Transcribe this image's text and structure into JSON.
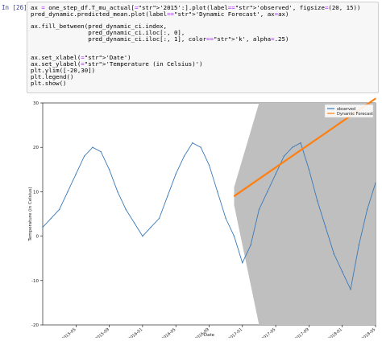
{
  "cell": {
    "prompt": "In [26]:",
    "code_lines": [
      "ax = one_step_df.T_mu_actual['2015':].plot(label='observed', figsize=(20, 15))",
      "pred_dynamic.predicted_mean.plot(label='Dynamic Forecast', ax=ax)",
      "",
      "ax.fill_between(pred_dynamic_ci.index,",
      "                pred_dynamic_ci.iloc[:, 0],",
      "                pred_dynamic_ci.iloc[:, 1], color='k', alpha=.25)",
      "",
      "",
      "ax.set_xlabel('Date')",
      "ax.set_ylabel('Temperature (in Celsius)')",
      "plt.ylim([-20,30])",
      "plt.legend()",
      "plt.show()"
    ]
  },
  "chart_data": {
    "type": "line",
    "xlabel": "Date",
    "ylabel": "Temperature (in Celsius)",
    "ylim": [
      -20,
      30
    ],
    "yticks": [
      -20,
      -10,
      0,
      10,
      20,
      30
    ],
    "x_range": [
      "2015-01",
      "2018-05"
    ],
    "x_ticks": [
      "2015-05",
      "2015-09",
      "2016-01",
      "2016-05",
      "2016-09",
      "2017-01",
      "2017-05",
      "2017-09",
      "2018-01",
      "2018-05"
    ],
    "legend_position": "top-right",
    "colors": {
      "observed": "#3a7ab8",
      "forecast": "#ff7f0e",
      "ci_band": "#bfbfbf"
    },
    "series": [
      {
        "name": "observed",
        "x": [
          "2015-01",
          "2015-02",
          "2015-03",
          "2015-04",
          "2015-05",
          "2015-06",
          "2015-07",
          "2015-08",
          "2015-09",
          "2015-10",
          "2015-11",
          "2015-12",
          "2016-01",
          "2016-02",
          "2016-03",
          "2016-04",
          "2016-05",
          "2016-06",
          "2016-07",
          "2016-08",
          "2016-09",
          "2016-10",
          "2016-11",
          "2016-12",
          "2017-01",
          "2017-02",
          "2017-03",
          "2017-04",
          "2017-05",
          "2017-06",
          "2017-07",
          "2017-08",
          "2017-09",
          "2017-10",
          "2017-11",
          "2017-12",
          "2018-01",
          "2018-02",
          "2018-03",
          "2018-04",
          "2018-05"
        ],
        "values": [
          2,
          4,
          6,
          10,
          14,
          18,
          20,
          19,
          15,
          10,
          6,
          3,
          0,
          2,
          4,
          9,
          14,
          18,
          21,
          20,
          16,
          10,
          4,
          0,
          -6,
          -2,
          6,
          10,
          14,
          18,
          20,
          21,
          15,
          8,
          2,
          -4,
          -8,
          -12,
          -2,
          6,
          12
        ]
      },
      {
        "name": "Dynamic Forecast",
        "x": [
          "2016-12",
          "2018-05"
        ],
        "values": [
          9,
          31
        ]
      }
    ],
    "confidence_band": {
      "x": [
        "2016-12",
        "2017-03",
        "2017-06",
        "2017-09",
        "2017-12",
        "2018-03",
        "2018-05"
      ],
      "lower": [
        7,
        -20,
        -20,
        -20,
        -20,
        -20,
        -20
      ],
      "upper": [
        11,
        30,
        30,
        30,
        30,
        30,
        30
      ]
    }
  }
}
